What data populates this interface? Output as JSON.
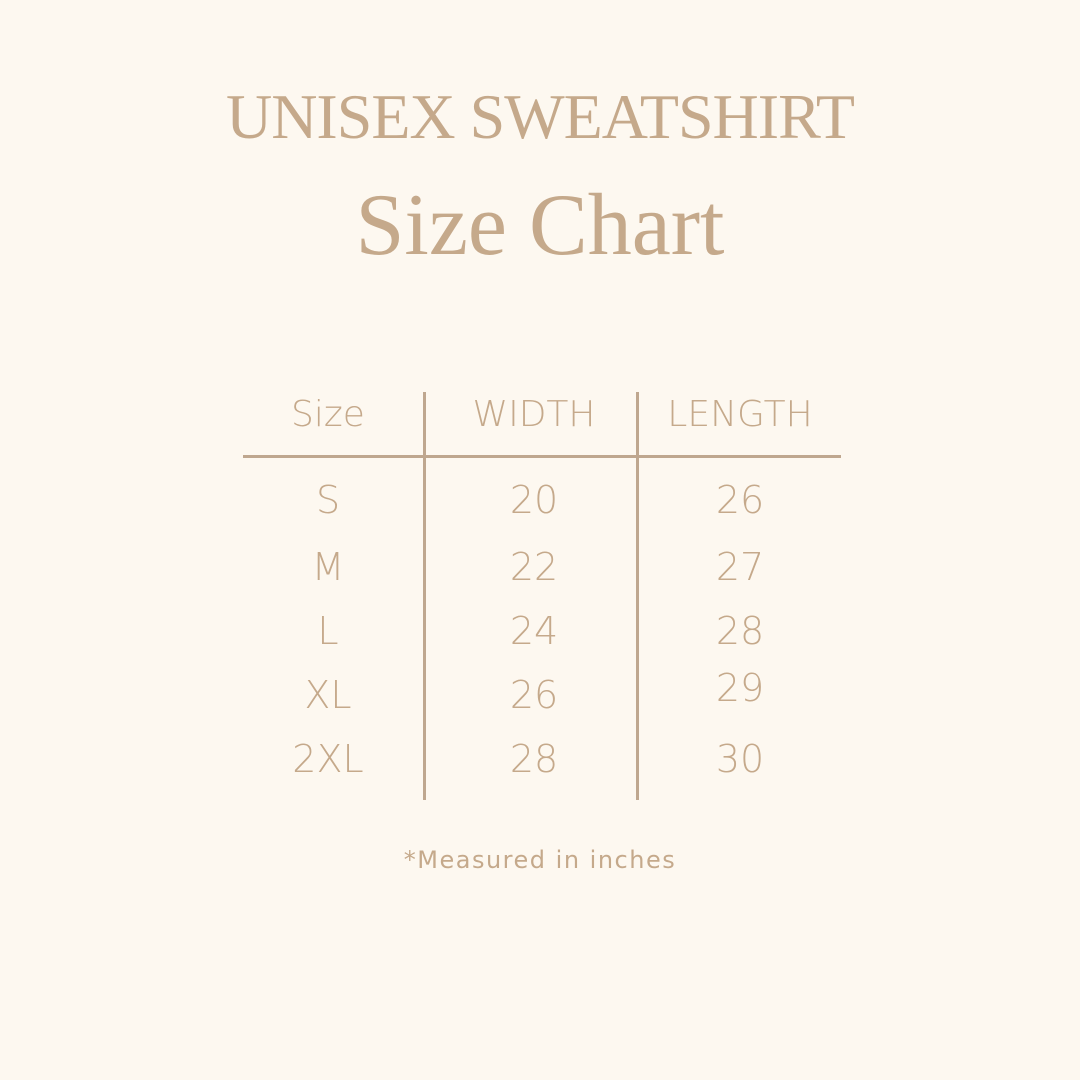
{
  "title": "UNISEX SWEATSHIRT",
  "subtitle": "Size Chart",
  "table": {
    "headers": [
      "Size",
      "WIDTH",
      "LENGTH"
    ],
    "rows": [
      [
        "S",
        "20",
        "26"
      ],
      [
        "M",
        "22",
        "27"
      ],
      [
        "L",
        "24",
        "28"
      ],
      [
        "XL",
        "26",
        "29"
      ],
      [
        "2XL",
        "28",
        "30"
      ]
    ]
  },
  "footnote": "*Measured in inches",
  "colors": {
    "background": "#fdf8f0",
    "text": "#c5a98b",
    "lines": "#bfa78f"
  }
}
